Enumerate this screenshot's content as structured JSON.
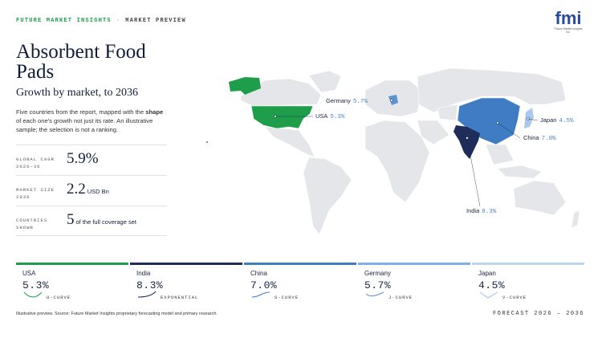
{
  "header": {
    "brand": "FUTURE MARKET INSIGHTS",
    "separator": "·",
    "section": "MARKET PREVIEW"
  },
  "logo": {
    "mark": "fmi",
    "tagline": "Future Market Insights Inc."
  },
  "title": "Absorbent Food Pads",
  "subtitle": "Growth by market, to 2036",
  "description": {
    "before": "Five countries from the report, mapped with the",
    "emphasis": "shape",
    "after": "of each one's growth not just its rate. An illustrative sample; the selection is not a ranking."
  },
  "stats": [
    {
      "label": "GLOBAL CAGR 2026–36",
      "value": "5.9%"
    },
    {
      "label": "MARKET SIZE 2036",
      "value": "2.2",
      "unit": "USD Bn"
    },
    {
      "label": "COUNTRIES SHOWN",
      "value": "5",
      "unit": "of the full coverage set"
    }
  ],
  "map_labels": [
    {
      "country": "Germany",
      "value": "5.7%"
    },
    {
      "country": "USA",
      "value": "5.3%"
    },
    {
      "country": "Japan",
      "value": "4.5%"
    },
    {
      "country": "China",
      "value": "7.0%"
    },
    {
      "country": "India",
      "value": "8.3%"
    }
  ],
  "cards": [
    {
      "country": "USA",
      "value": "5.3%",
      "curve": "U-CURVE"
    },
    {
      "country": "India",
      "value": "8.3%",
      "curve": "EXPONENTIAL"
    },
    {
      "country": "China",
      "value": "7.0%",
      "curve": "S-CURVE"
    },
    {
      "country": "Germany",
      "value": "5.7%",
      "curve": "J-CURVE"
    },
    {
      "country": "Japan",
      "value": "4.5%",
      "curve": "V-CURVE"
    }
  ],
  "footer": {
    "source": "Illustrative preview. Source: Future Market Insights proprietary forecasting model and primary research.",
    "forecast": "FORECAST 2026 – 2036"
  }
}
